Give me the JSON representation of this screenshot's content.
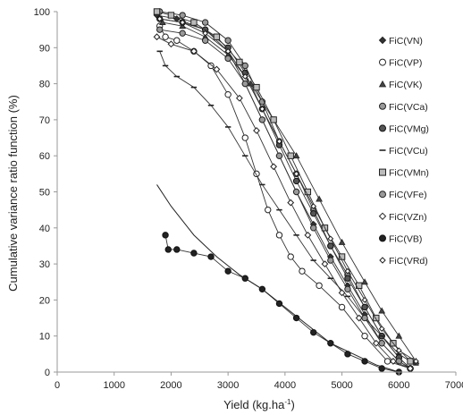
{
  "chart_data": {
    "type": "line",
    "xlabel": "Yield (kg.ha",
    "xlabel_unit_sup": "-1",
    "xlabel_close": ")",
    "ylabel": "Cumulative variance ratio function (%)",
    "xlim": [
      0,
      7000
    ],
    "ylim": [
      0,
      100
    ],
    "xticks": [
      0,
      1000,
      2000,
      3000,
      4000,
      5000,
      6000,
      7000
    ],
    "yticks": [
      0,
      10,
      20,
      30,
      40,
      50,
      60,
      70,
      80,
      90,
      100
    ],
    "grid": false,
    "legend_position": "right",
    "series": [
      {
        "name": "FiC(VN)",
        "marker": "diamond",
        "x": [
          1750,
          2100,
          2600,
          3000,
          3300,
          3600,
          3900,
          4200,
          4500,
          4800,
          5100,
          5400,
          5700,
          6000,
          6200
        ],
        "y": [
          99,
          98,
          95,
          89,
          80,
          70,
          60,
          50,
          41,
          32,
          24,
          16,
          8,
          3,
          1
        ]
      },
      {
        "name": "FiC(VP)",
        "marker": "circle",
        "x": [
          1800,
          1900,
          2100,
          2400,
          2700,
          3000,
          3300,
          3500,
          3700,
          3900,
          4100,
          4300,
          4600,
          5000,
          5400,
          5800,
          6200
        ],
        "y": [
          96,
          93,
          92,
          89,
          85,
          77,
          65,
          55,
          45,
          38,
          32,
          28,
          24,
          18,
          10,
          3,
          1
        ]
      },
      {
        "name": "FiC(VK)",
        "marker": "triangle",
        "x": [
          1850,
          2200,
          2600,
          3000,
          3400,
          3800,
          4200,
          4600,
          5000,
          5400,
          5700,
          6000,
          6300
        ],
        "y": [
          97,
          96,
          93,
          88,
          80,
          70,
          60,
          48,
          36,
          25,
          17,
          10,
          3
        ]
      },
      {
        "name": "FiC(VCa)",
        "marker": "circle-dot",
        "x": [
          1800,
          2200,
          2600,
          3000,
          3300,
          3600,
          3900,
          4200,
          4500,
          4800,
          5100,
          5400,
          5700,
          6000,
          6200
        ],
        "y": [
          100,
          99,
          97,
          92,
          85,
          75,
          64,
          55,
          45,
          35,
          27,
          18,
          10,
          4,
          1
        ]
      },
      {
        "name": "FiC(VMg)",
        "marker": "circle-slash",
        "x": [
          1800,
          2200,
          2600,
          3000,
          3300,
          3600,
          3900,
          4200,
          4500,
          4800,
          5100,
          5400,
          5700,
          6000,
          6200
        ],
        "y": [
          98,
          97,
          95,
          90,
          83,
          73,
          63,
          53,
          44,
          35,
          26,
          18,
          10,
          4,
          1
        ]
      },
      {
        "name": "FiC(VCu)",
        "marker": "dash",
        "x": [
          1800,
          1900,
          2100,
          2400,
          2700,
          3000,
          3300,
          3600,
          3900,
          4200,
          4500,
          4800,
          5100,
          5400,
          5700,
          6000,
          6300
        ],
        "y": [
          89,
          85,
          82,
          79,
          74,
          68,
          60,
          52,
          45,
          38,
          31,
          26,
          21,
          15,
          10,
          5,
          2
        ]
      },
      {
        "name": "FiC(VMn)",
        "marker": "square",
        "x": [
          1750,
          2000,
          2400,
          2800,
          3200,
          3500,
          3800,
          4100,
          4400,
          4700,
          5000,
          5300,
          5600,
          5900,
          6200
        ],
        "y": [
          100,
          99,
          97,
          93,
          86,
          79,
          70,
          60,
          50,
          40,
          32,
          24,
          15,
          8,
          3
        ]
      },
      {
        "name": "FiC(VFe)",
        "marker": "circle-dot",
        "x": [
          1800,
          2200,
          2600,
          3000,
          3300,
          3600,
          3900,
          4200,
          4500,
          4800,
          5100,
          5400,
          5700,
          6000,
          6200
        ],
        "y": [
          95,
          94,
          92,
          87,
          80,
          70,
          60,
          50,
          40,
          31,
          23,
          15,
          8,
          3,
          1
        ]
      },
      {
        "name": "FiC(VZn)",
        "marker": "diamond-open",
        "x": [
          1750,
          2000,
          2400,
          2800,
          3200,
          3500,
          3800,
          4100,
          4400,
          4700,
          5000,
          5300,
          5600,
          5900,
          6200
        ],
        "y": [
          93,
          91,
          89,
          84,
          76,
          67,
          57,
          47,
          38,
          30,
          22,
          15,
          8,
          3,
          1
        ]
      },
      {
        "name": "FiC(VB)",
        "marker": "circle-filled",
        "x": [
          1900,
          1950,
          2100,
          2400,
          2700,
          3000,
          3300,
          3600,
          3900,
          4200,
          4500,
          4800,
          5100,
          5400,
          5700,
          6000
        ],
        "y": [
          38,
          34,
          34,
          33,
          32,
          28,
          26,
          23,
          19,
          15,
          11,
          8,
          5,
          3,
          1,
          0
        ]
      },
      {
        "name": "FiC(VRd)",
        "marker": "diamond-small",
        "x": [
          1800,
          2200,
          2600,
          3000,
          3300,
          3600,
          3900,
          4200,
          4500,
          4800,
          5100,
          5400,
          5700,
          6000,
          6300
        ],
        "y": [
          98,
          97,
          94,
          89,
          82,
          73,
          64,
          55,
          46,
          37,
          28,
          20,
          12,
          6,
          3
        ]
      }
    ],
    "fit_curve": {
      "x": [
        1750,
        2000,
        2400,
        2800,
        3200,
        3600,
        4000,
        4400,
        4800,
        5200,
        5600,
        6000
      ],
      "y": [
        52,
        46,
        38,
        32,
        27,
        23,
        18,
        13,
        8,
        5,
        2,
        0
      ]
    }
  }
}
